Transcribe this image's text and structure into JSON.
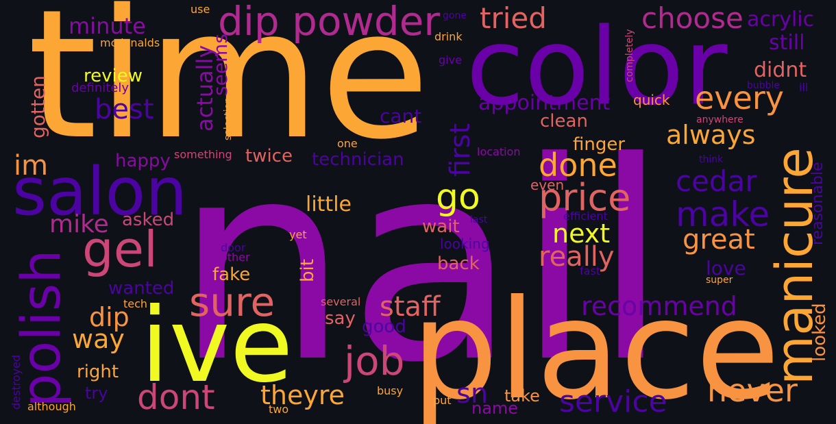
{
  "background": "#0e1117",
  "palette": {
    "yellow": "#f0f921",
    "orange": "#fca636",
    "lightorange": "#f89441",
    "salmon": "#e16462",
    "pink": "#cc4778",
    "magenta": "#b12a90",
    "purple": "#8b0aa5",
    "violet": "#6a00a8",
    "indigo": "#4b03a1",
    "navy": "#2d0594"
  },
  "words": [
    {
      "text": "nail",
      "color": "#8b0aa5"
    },
    {
      "text": "time",
      "color": "#fca636"
    },
    {
      "text": "color",
      "color": "#6a00a8"
    },
    {
      "text": "place",
      "color": "#f89441"
    },
    {
      "text": "ive",
      "color": "#f0f921"
    },
    {
      "text": "salon",
      "color": "#4b03a1"
    },
    {
      "text": "manicure",
      "color": "#fca636"
    },
    {
      "text": "dip powder",
      "color": "#b12a90"
    },
    {
      "text": "gel",
      "color": "#cc4778"
    },
    {
      "text": "polish",
      "color": "#6a00a8"
    },
    {
      "text": "sure",
      "color": "#e16462"
    },
    {
      "text": "price",
      "color": "#e16462"
    },
    {
      "text": "never",
      "color": "#f89441"
    },
    {
      "text": "dont",
      "color": "#cc4778"
    },
    {
      "text": "job",
      "color": "#cc4778"
    },
    {
      "text": "service",
      "color": "#4b03a1"
    },
    {
      "text": "make",
      "color": "#4b03a1"
    },
    {
      "text": "done",
      "color": "#fca636"
    },
    {
      "text": "every",
      "color": "#f89441"
    },
    {
      "text": "choose",
      "color": "#b12a90"
    },
    {
      "text": "tried",
      "color": "#e16462"
    },
    {
      "text": "go",
      "color": "#f0f921"
    },
    {
      "text": "cedar",
      "color": "#4b03a1"
    },
    {
      "text": "great",
      "color": "#f89441"
    },
    {
      "text": "really",
      "color": "#e16462"
    },
    {
      "text": "next",
      "color": "#f0f921"
    },
    {
      "text": "always",
      "color": "#fca636"
    },
    {
      "text": "staff",
      "color": "#e16462"
    },
    {
      "text": "recommend",
      "color": "#6a00a8"
    },
    {
      "text": "theyre",
      "color": "#fca636"
    },
    {
      "text": "best",
      "color": "#4b03a1"
    },
    {
      "text": "first",
      "color": "#4b03a1"
    },
    {
      "text": "im",
      "color": "#f89441"
    },
    {
      "text": "appointment",
      "color": "#6a00a8"
    },
    {
      "text": "way",
      "color": "#fca636"
    },
    {
      "text": "dip",
      "color": "#f89441"
    },
    {
      "text": "sn",
      "color": "#4b03a1"
    },
    {
      "text": "mike",
      "color": "#b12a90"
    },
    {
      "text": "minute",
      "color": "#8b0aa5"
    },
    {
      "text": "acrylic",
      "color": "#6a00a8"
    },
    {
      "text": "still",
      "color": "#6a00a8"
    },
    {
      "text": "didnt",
      "color": "#e16462"
    },
    {
      "text": "review",
      "color": "#f0f921"
    },
    {
      "text": "actually",
      "color": "#8b0aa5"
    },
    {
      "text": "seems",
      "color": "#8b0aa5"
    },
    {
      "text": "gotten",
      "color": "#e16462"
    },
    {
      "text": "little",
      "color": "#fca636"
    },
    {
      "text": "love",
      "color": "#4b03a1"
    },
    {
      "text": "looked",
      "color": "#f89441"
    },
    {
      "text": "reasonable",
      "color": "#4b03a1"
    },
    {
      "text": "clean",
      "color": "#e16462"
    },
    {
      "text": "finger",
      "color": "#fca636"
    },
    {
      "text": "cant",
      "color": "#4b03a1"
    },
    {
      "text": "happy",
      "color": "#8b0aa5"
    },
    {
      "text": "twice",
      "color": "#e16462"
    },
    {
      "text": "technician",
      "color": "#4b03a1"
    },
    {
      "text": "asked",
      "color": "#cc4778"
    },
    {
      "text": "wait",
      "color": "#e16462"
    },
    {
      "text": "back",
      "color": "#e16462"
    },
    {
      "text": "fake",
      "color": "#fca636"
    },
    {
      "text": "bit",
      "color": "#fca636"
    },
    {
      "text": "wanted",
      "color": "#4b03a1"
    },
    {
      "text": "say",
      "color": "#e16462"
    },
    {
      "text": "good",
      "color": "#4b03a1"
    },
    {
      "text": "right",
      "color": "#fca636"
    },
    {
      "text": "take",
      "color": "#f89441"
    },
    {
      "text": "name",
      "color": "#8b0aa5"
    },
    {
      "text": "try",
      "color": "#4b03a1"
    },
    {
      "text": "quick",
      "color": "#f89441"
    },
    {
      "text": "even",
      "color": "#e16462"
    },
    {
      "text": "looking",
      "color": "#4b03a1"
    },
    {
      "text": "efficient",
      "color": "#4b03a1"
    },
    {
      "text": "location",
      "color": "#8b0aa5"
    },
    {
      "text": "anywhere",
      "color": "#cc4778"
    },
    {
      "text": "think",
      "color": "#4b03a1"
    },
    {
      "text": "fast",
      "color": "#4b03a1"
    },
    {
      "text": "super",
      "color": "#fca636"
    },
    {
      "text": "last",
      "color": "#4b03a1"
    },
    {
      "text": "completely",
      "color": "#cc4778"
    },
    {
      "text": "bubble",
      "color": "#4b03a1"
    },
    {
      "text": "ill",
      "color": "#4b03a1"
    },
    {
      "text": "use",
      "color": "#fca636"
    },
    {
      "text": "mcdonalds",
      "color": "#fca636"
    },
    {
      "text": "definitely",
      "color": "#6a00a8"
    },
    {
      "text": "selection",
      "color": "#fca636"
    },
    {
      "text": "something",
      "color": "#cc4778"
    },
    {
      "text": "one",
      "color": "#fca636"
    },
    {
      "text": "drink",
      "color": "#fca636"
    },
    {
      "text": "give",
      "color": "#6a00a8"
    },
    {
      "text": "gone",
      "color": "#4b03a1"
    },
    {
      "text": "yet",
      "color": "#fca636"
    },
    {
      "text": "door",
      "color": "#4b03a1"
    },
    {
      "text": "another",
      "color": "#8b0aa5"
    },
    {
      "text": "several",
      "color": "#e16462"
    },
    {
      "text": "tech",
      "color": "#fca636"
    },
    {
      "text": "busy",
      "color": "#fca636"
    },
    {
      "text": "put",
      "color": "#fca636"
    },
    {
      "text": "two",
      "color": "#fca636"
    },
    {
      "text": "destroyed",
      "color": "#4b03a1"
    },
    {
      "text": "although",
      "color": "#fca636"
    }
  ]
}
